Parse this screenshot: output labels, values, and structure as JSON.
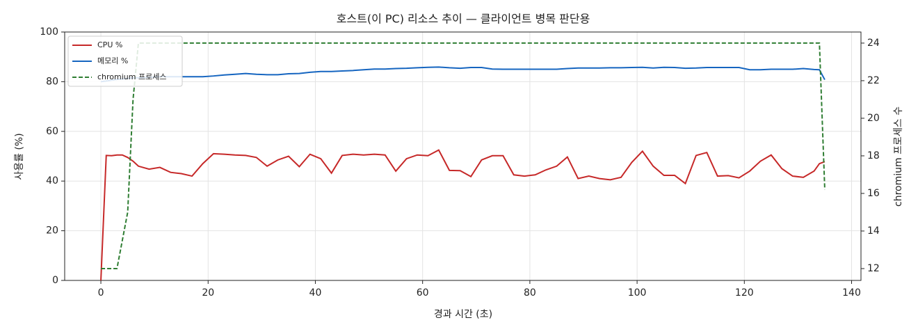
{
  "chart_data": {
    "type": "line",
    "title": "호스트(이 PC) 리소스 추이 — 클라이언트 병목 판단용",
    "x_label": "경과 시간 (초)",
    "y_label": "사용률 (%)",
    "y2_label": "chromium 프로세스 수",
    "x": [
      0,
      1,
      2,
      3,
      4,
      5,
      6,
      7,
      9,
      11,
      13,
      15,
      17,
      19,
      21,
      23,
      25,
      27,
      29,
      31,
      33,
      35,
      37,
      39,
      41,
      43,
      45,
      47,
      49,
      51,
      53,
      55,
      57,
      59,
      61,
      63,
      65,
      67,
      69,
      71,
      73,
      75,
      77,
      79,
      81,
      83,
      85,
      87,
      89,
      91,
      93,
      95,
      97,
      99,
      101,
      103,
      105,
      107,
      109,
      111,
      113,
      115,
      117,
      119,
      121,
      123,
      125,
      127,
      129,
      131,
      133,
      134,
      135
    ],
    "series": [
      {
        "name": "CPU %",
        "color": "#c62828",
        "style": "solid",
        "axis": "y",
        "values": [
          0,
          50.3,
          50.2,
          50.5,
          50.5,
          49.5,
          48,
          46,
          44.8,
          45.5,
          43.5,
          43,
          42,
          47,
          51,
          50.8,
          50.5,
          50.3,
          49.5,
          46,
          48.5,
          50,
          45.8,
          50.8,
          49,
          43.2,
          50.3,
          50.8,
          50.5,
          50.8,
          50.5,
          44,
          49,
          50.5,
          50.2,
          52.5,
          44.3,
          44.2,
          41.8,
          48.5,
          50.2,
          50.2,
          42.5,
          42,
          42.5,
          44.5,
          46,
          49.7,
          41,
          42,
          41,
          40.5,
          41.5,
          47.5,
          52,
          46,
          42.3,
          42.3,
          39,
          50.3,
          51.5,
          42,
          42.2,
          41.3,
          44,
          48,
          50.5,
          45,
          42,
          41.5,
          44,
          47,
          47.8
        ]
      },
      {
        "name": "메모리 %",
        "color": "#1565c0",
        "style": "solid",
        "axis": "y",
        "values": [
          80,
          80.3,
          80.6,
          80.9,
          81.1,
          81.3,
          81.5,
          81.6,
          81.8,
          82,
          82,
          82,
          82,
          82,
          82.3,
          82.7,
          83,
          83.3,
          83,
          82.8,
          82.8,
          83.2,
          83.3,
          83.8,
          84.1,
          84.1,
          84.3,
          84.5,
          84.8,
          85.1,
          85.1,
          85.3,
          85.4,
          85.6,
          85.8,
          85.9,
          85.6,
          85.4,
          85.7,
          85.7,
          85.1,
          85,
          85,
          85,
          85,
          85,
          85,
          85.3,
          85.5,
          85.5,
          85.5,
          85.6,
          85.6,
          85.7,
          85.8,
          85.5,
          85.8,
          85.7,
          85.4,
          85.5,
          85.7,
          85.7,
          85.7,
          85.7,
          84.8,
          84.8,
          85,
          85,
          85,
          85.3,
          84.9,
          84.8,
          80.8
        ]
      },
      {
        "name": "chromium 프로세스",
        "color": "#2e7d32",
        "style": "dashed",
        "axis": "y2",
        "values": [
          12,
          12,
          12,
          12,
          13.5,
          15,
          21,
          24,
          24,
          24,
          24,
          24,
          24,
          24,
          24,
          24,
          24,
          24,
          24,
          24,
          24,
          24,
          24,
          24,
          24,
          24,
          24,
          24,
          24,
          24,
          24,
          24,
          24,
          24,
          24,
          24,
          24,
          24,
          24,
          24,
          24,
          24,
          24,
          24,
          24,
          24,
          24,
          24,
          24,
          24,
          24,
          24,
          24,
          24,
          24,
          24,
          24,
          24,
          24,
          24,
          24,
          24,
          24,
          24,
          24,
          24,
          24,
          24,
          24,
          24,
          24,
          24,
          16.2
        ]
      }
    ],
    "xlim": [
      -6.75,
      141.75
    ],
    "xticks": [
      0,
      20,
      40,
      60,
      80,
      100,
      120,
      140
    ],
    "ylim": [
      0,
      100
    ],
    "yticks": [
      0,
      20,
      40,
      60,
      80,
      100
    ],
    "y2lim": [
      11.37,
      24.59
    ],
    "y2ticks": [
      12,
      14,
      16,
      18,
      20,
      22,
      24
    ],
    "grid": true,
    "legend": "upper left"
  }
}
